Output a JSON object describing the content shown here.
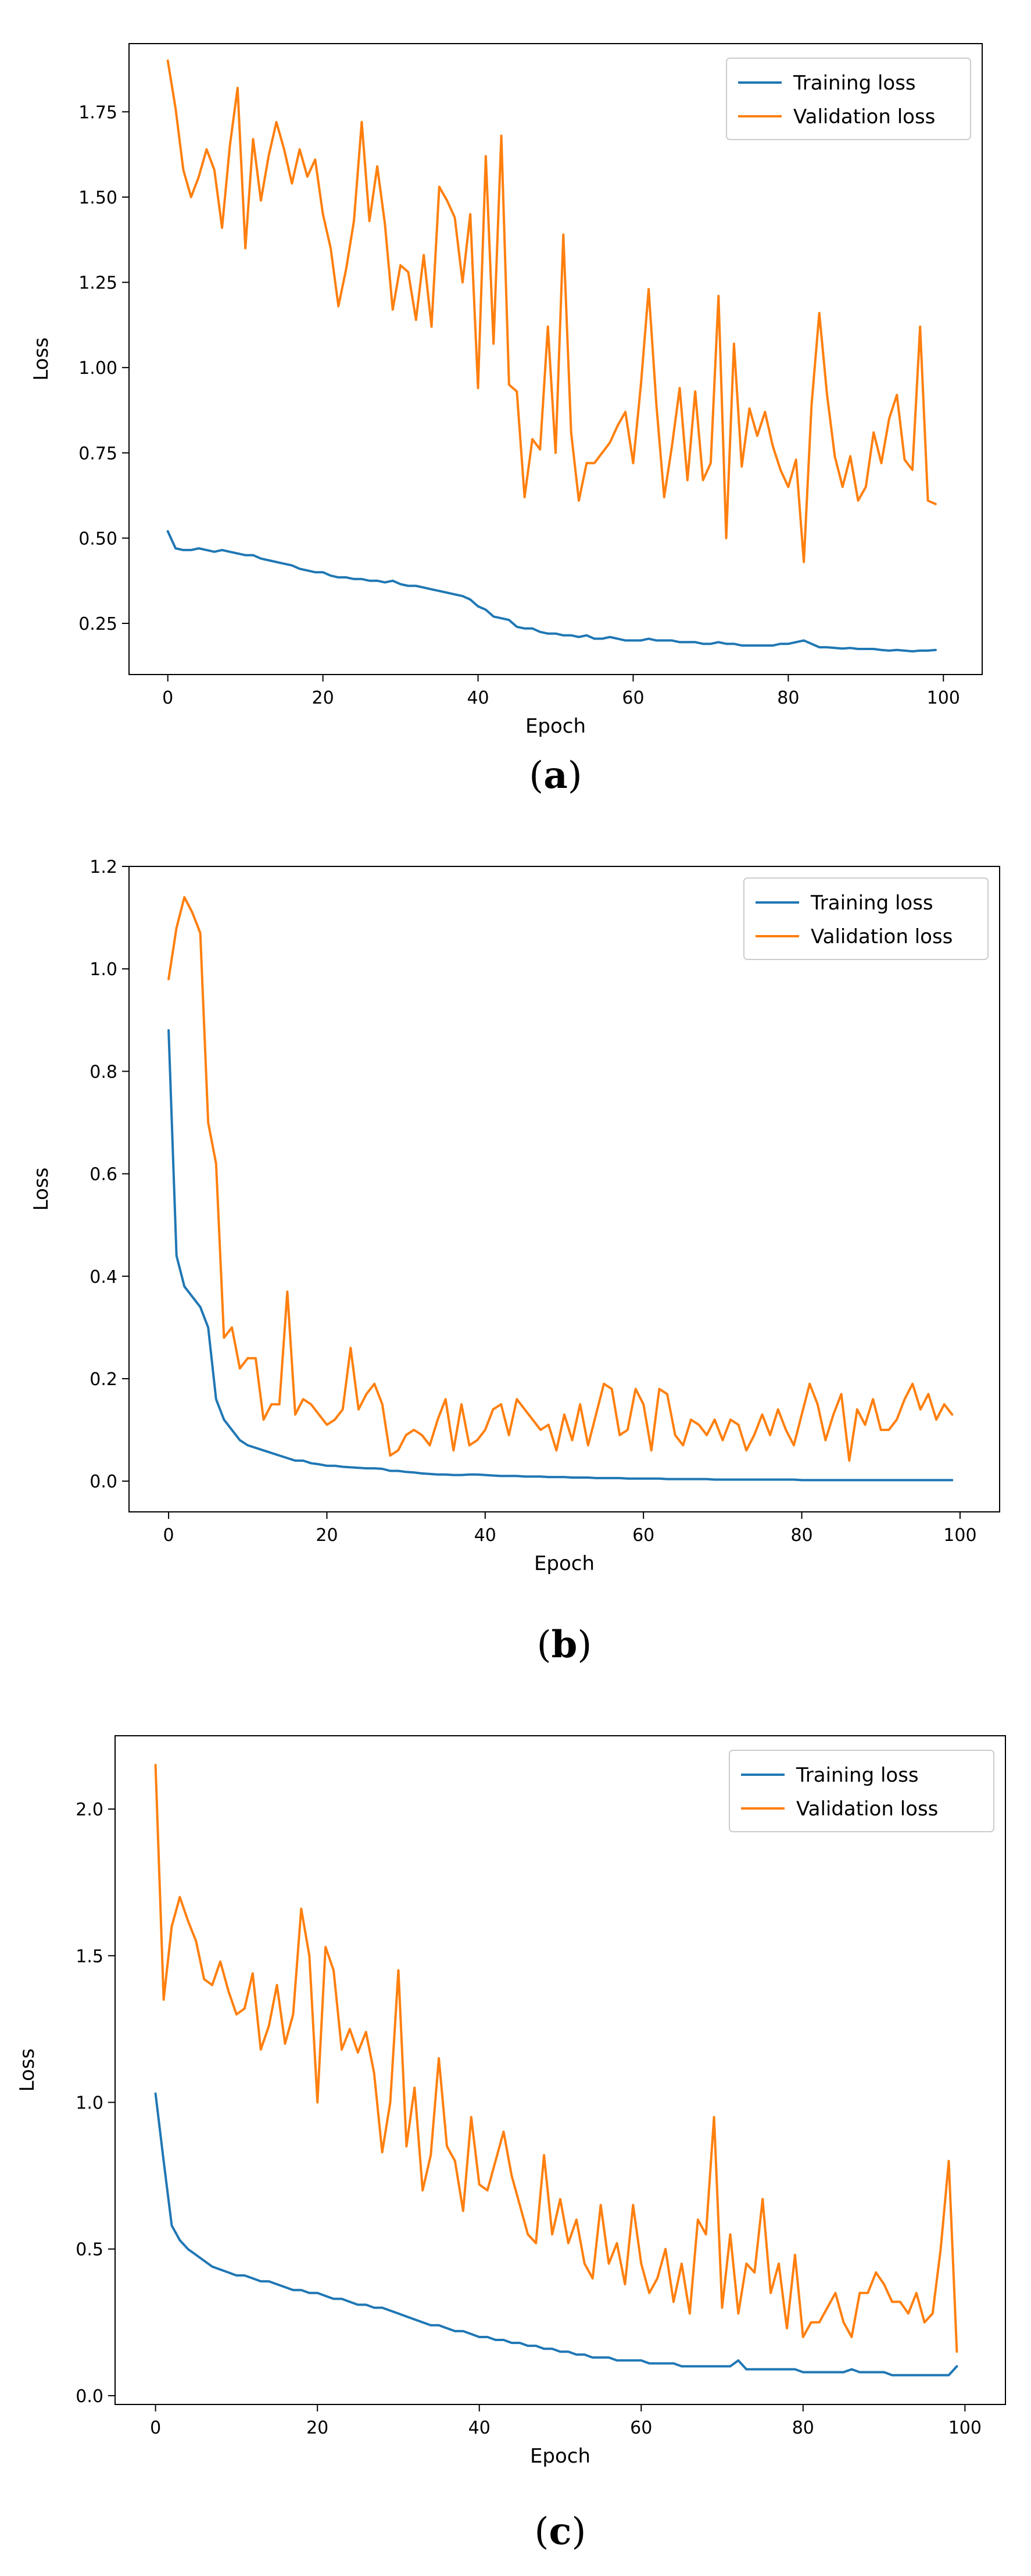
{
  "colors": {
    "training": "#1f77b4",
    "validation": "#ff7f0e"
  },
  "chart_data": [
    {
      "type": "line",
      "caption_letter": "a",
      "xlabel": "Epoch",
      "ylabel": "Loss",
      "xlim": [
        -5,
        105
      ],
      "ylim": [
        0.1,
        1.95
      ],
      "xticks": [
        0,
        20,
        40,
        60,
        80,
        100
      ],
      "yticks": [
        0.25,
        0.5,
        0.75,
        1.0,
        1.25,
        1.5,
        1.75
      ],
      "ytick_labels": [
        "0.25",
        "0.50",
        "0.75",
        "1.00",
        "1.25",
        "1.50",
        "1.75"
      ],
      "legend_position": "top-right",
      "x": [
        0,
        1,
        2,
        3,
        4,
        5,
        6,
        7,
        8,
        9,
        10,
        11,
        12,
        13,
        14,
        15,
        16,
        17,
        18,
        19,
        20,
        21,
        22,
        23,
        24,
        25,
        26,
        27,
        28,
        29,
        30,
        31,
        32,
        33,
        34,
        35,
        36,
        37,
        38,
        39,
        40,
        41,
        42,
        43,
        44,
        45,
        46,
        47,
        48,
        49,
        50,
        51,
        52,
        53,
        54,
        55,
        56,
        57,
        58,
        59,
        60,
        61,
        62,
        63,
        64,
        65,
        66,
        67,
        68,
        69,
        70,
        71,
        72,
        73,
        74,
        75,
        76,
        77,
        78,
        79,
        80,
        81,
        82,
        83,
        84,
        85,
        86,
        87,
        88,
        89,
        90,
        91,
        92,
        93,
        94,
        95,
        96,
        97,
        98,
        99
      ],
      "series": [
        {
          "name": "Training loss",
          "color_key": "training",
          "values": [
            0.52,
            0.47,
            0.465,
            0.465,
            0.47,
            0.465,
            0.46,
            0.465,
            0.46,
            0.455,
            0.45,
            0.45,
            0.44,
            0.435,
            0.43,
            0.425,
            0.42,
            0.41,
            0.405,
            0.4,
            0.4,
            0.39,
            0.385,
            0.385,
            0.38,
            0.38,
            0.375,
            0.375,
            0.37,
            0.375,
            0.365,
            0.36,
            0.36,
            0.355,
            0.35,
            0.345,
            0.34,
            0.335,
            0.33,
            0.32,
            0.3,
            0.29,
            0.27,
            0.265,
            0.26,
            0.24,
            0.235,
            0.235,
            0.225,
            0.22,
            0.22,
            0.215,
            0.215,
            0.21,
            0.215,
            0.205,
            0.205,
            0.21,
            0.205,
            0.2,
            0.2,
            0.2,
            0.205,
            0.2,
            0.2,
            0.2,
            0.195,
            0.195,
            0.195,
            0.19,
            0.19,
            0.195,
            0.19,
            0.19,
            0.185,
            0.185,
            0.185,
            0.185,
            0.185,
            0.19,
            0.19,
            0.195,
            0.2,
            0.19,
            0.18,
            0.18,
            0.178,
            0.176,
            0.178,
            0.175,
            0.175,
            0.175,
            0.172,
            0.17,
            0.172,
            0.17,
            0.168,
            0.17,
            0.17,
            0.172
          ]
        },
        {
          "name": "Validation loss",
          "color_key": "validation",
          "values": [
            1.9,
            1.76,
            1.58,
            1.5,
            1.56,
            1.64,
            1.58,
            1.41,
            1.65,
            1.82,
            1.35,
            1.67,
            1.49,
            1.62,
            1.72,
            1.64,
            1.54,
            1.64,
            1.56,
            1.61,
            1.45,
            1.35,
            1.18,
            1.29,
            1.43,
            1.72,
            1.43,
            1.59,
            1.42,
            1.17,
            1.3,
            1.28,
            1.14,
            1.33,
            1.12,
            1.53,
            1.49,
            1.44,
            1.25,
            1.45,
            0.94,
            1.62,
            1.07,
            1.68,
            0.95,
            0.93,
            0.62,
            0.79,
            0.76,
            1.12,
            0.75,
            1.39,
            0.81,
            0.61,
            0.72,
            0.72,
            0.75,
            0.78,
            0.83,
            0.87,
            0.72,
            0.95,
            1.23,
            0.89,
            0.62,
            0.77,
            0.94,
            0.67,
            0.93,
            0.67,
            0.72,
            1.21,
            0.5,
            1.07,
            0.71,
            0.88,
            0.8,
            0.87,
            0.77,
            0.7,
            0.65,
            0.73,
            0.43,
            0.89,
            1.16,
            0.92,
            0.74,
            0.65,
            0.74,
            0.61,
            0.65,
            0.81,
            0.72,
            0.85,
            0.92,
            0.73,
            0.7,
            1.12,
            0.61,
            0.6
          ]
        }
      ]
    },
    {
      "type": "line",
      "caption_letter": "b",
      "xlabel": "Epoch",
      "ylabel": "Loss",
      "xlim": [
        -5,
        105
      ],
      "ylim": [
        -0.06,
        1.2
      ],
      "xticks": [
        0,
        20,
        40,
        60,
        80,
        100
      ],
      "yticks": [
        0.0,
        0.2,
        0.4,
        0.6,
        0.8,
        1.0,
        1.2
      ],
      "ytick_labels": [
        "0.0",
        "0.2",
        "0.4",
        "0.6",
        "0.8",
        "1.0",
        "1.2"
      ],
      "legend_position": "top-right",
      "x": [
        0,
        1,
        2,
        3,
        4,
        5,
        6,
        7,
        8,
        9,
        10,
        11,
        12,
        13,
        14,
        15,
        16,
        17,
        18,
        19,
        20,
        21,
        22,
        23,
        24,
        25,
        26,
        27,
        28,
        29,
        30,
        31,
        32,
        33,
        34,
        35,
        36,
        37,
        38,
        39,
        40,
        41,
        42,
        43,
        44,
        45,
        46,
        47,
        48,
        49,
        50,
        51,
        52,
        53,
        54,
        55,
        56,
        57,
        58,
        59,
        60,
        61,
        62,
        63,
        64,
        65,
        66,
        67,
        68,
        69,
        70,
        71,
        72,
        73,
        74,
        75,
        76,
        77,
        78,
        79,
        80,
        81,
        82,
        83,
        84,
        85,
        86,
        87,
        88,
        89,
        90,
        91,
        92,
        93,
        94,
        95,
        96,
        97,
        98,
        99
      ],
      "series": [
        {
          "name": "Training loss",
          "color_key": "training",
          "values": [
            0.88,
            0.44,
            0.38,
            0.36,
            0.34,
            0.3,
            0.16,
            0.12,
            0.1,
            0.08,
            0.07,
            0.065,
            0.06,
            0.055,
            0.05,
            0.045,
            0.04,
            0.04,
            0.035,
            0.033,
            0.03,
            0.03,
            0.028,
            0.027,
            0.026,
            0.025,
            0.025,
            0.024,
            0.02,
            0.02,
            0.018,
            0.017,
            0.015,
            0.014,
            0.013,
            0.013,
            0.012,
            0.012,
            0.013,
            0.013,
            0.012,
            0.011,
            0.01,
            0.01,
            0.01,
            0.009,
            0.009,
            0.009,
            0.008,
            0.008,
            0.008,
            0.007,
            0.007,
            0.007,
            0.006,
            0.006,
            0.006,
            0.006,
            0.005,
            0.005,
            0.005,
            0.005,
            0.005,
            0.004,
            0.004,
            0.004,
            0.004,
            0.004,
            0.004,
            0.003,
            0.003,
            0.003,
            0.003,
            0.003,
            0.003,
            0.003,
            0.003,
            0.003,
            0.003,
            0.003,
            0.002,
            0.002,
            0.002,
            0.002,
            0.002,
            0.002,
            0.002,
            0.002,
            0.002,
            0.002,
            0.002,
            0.002,
            0.002,
            0.002,
            0.002,
            0.002,
            0.002,
            0.002,
            0.002,
            0.002
          ]
        },
        {
          "name": "Validation loss",
          "color_key": "validation",
          "values": [
            0.98,
            1.08,
            1.14,
            1.11,
            1.07,
            0.7,
            0.62,
            0.28,
            0.3,
            0.22,
            0.24,
            0.24,
            0.12,
            0.15,
            0.15,
            0.37,
            0.13,
            0.16,
            0.15,
            0.13,
            0.11,
            0.12,
            0.14,
            0.26,
            0.14,
            0.17,
            0.19,
            0.15,
            0.05,
            0.06,
            0.09,
            0.1,
            0.09,
            0.07,
            0.12,
            0.16,
            0.06,
            0.15,
            0.07,
            0.08,
            0.1,
            0.14,
            0.15,
            0.09,
            0.16,
            0.14,
            0.12,
            0.1,
            0.11,
            0.06,
            0.13,
            0.08,
            0.15,
            0.07,
            0.13,
            0.19,
            0.18,
            0.09,
            0.1,
            0.18,
            0.15,
            0.06,
            0.18,
            0.17,
            0.09,
            0.07,
            0.12,
            0.11,
            0.09,
            0.12,
            0.08,
            0.12,
            0.11,
            0.06,
            0.09,
            0.13,
            0.09,
            0.14,
            0.1,
            0.07,
            0.13,
            0.19,
            0.15,
            0.08,
            0.13,
            0.17,
            0.04,
            0.14,
            0.11,
            0.16,
            0.1,
            0.1,
            0.12,
            0.16,
            0.19,
            0.14,
            0.17,
            0.12,
            0.15,
            0.13
          ]
        }
      ]
    },
    {
      "type": "line",
      "caption_letter": "c",
      "xlabel": "Epoch",
      "ylabel": "Loss",
      "xlim": [
        -5,
        105
      ],
      "ylim": [
        -0.03,
        2.25
      ],
      "xticks": [
        0,
        20,
        40,
        60,
        80,
        100
      ],
      "yticks": [
        0.0,
        0.5,
        1.0,
        1.5,
        2.0
      ],
      "ytick_labels": [
        "0.0",
        "0.5",
        "1.0",
        "1.5",
        "2.0"
      ],
      "legend_position": "top-right",
      "x": [
        0,
        1,
        2,
        3,
        4,
        5,
        6,
        7,
        8,
        9,
        10,
        11,
        12,
        13,
        14,
        15,
        16,
        17,
        18,
        19,
        20,
        21,
        22,
        23,
        24,
        25,
        26,
        27,
        28,
        29,
        30,
        31,
        32,
        33,
        34,
        35,
        36,
        37,
        38,
        39,
        40,
        41,
        42,
        43,
        44,
        45,
        46,
        47,
        48,
        49,
        50,
        51,
        52,
        53,
        54,
        55,
        56,
        57,
        58,
        59,
        60,
        61,
        62,
        63,
        64,
        65,
        66,
        67,
        68,
        69,
        70,
        71,
        72,
        73,
        74,
        75,
        76,
        77,
        78,
        79,
        80,
        81,
        82,
        83,
        84,
        85,
        86,
        87,
        88,
        89,
        90,
        91,
        92,
        93,
        94,
        95,
        96,
        97,
        98,
        99
      ],
      "series": [
        {
          "name": "Training loss",
          "color_key": "training",
          "values": [
            1.03,
            0.8,
            0.58,
            0.53,
            0.5,
            0.48,
            0.46,
            0.44,
            0.43,
            0.42,
            0.41,
            0.41,
            0.4,
            0.39,
            0.39,
            0.38,
            0.37,
            0.36,
            0.36,
            0.35,
            0.35,
            0.34,
            0.33,
            0.33,
            0.32,
            0.31,
            0.31,
            0.3,
            0.3,
            0.29,
            0.28,
            0.27,
            0.26,
            0.25,
            0.24,
            0.24,
            0.23,
            0.22,
            0.22,
            0.21,
            0.2,
            0.2,
            0.19,
            0.19,
            0.18,
            0.18,
            0.17,
            0.17,
            0.16,
            0.16,
            0.15,
            0.15,
            0.14,
            0.14,
            0.13,
            0.13,
            0.13,
            0.12,
            0.12,
            0.12,
            0.12,
            0.11,
            0.11,
            0.11,
            0.11,
            0.1,
            0.1,
            0.1,
            0.1,
            0.1,
            0.1,
            0.1,
            0.12,
            0.09,
            0.09,
            0.09,
            0.09,
            0.09,
            0.09,
            0.09,
            0.08,
            0.08,
            0.08,
            0.08,
            0.08,
            0.08,
            0.09,
            0.08,
            0.08,
            0.08,
            0.08,
            0.07,
            0.07,
            0.07,
            0.07,
            0.07,
            0.07,
            0.07,
            0.07,
            0.1
          ]
        },
        {
          "name": "Validation loss",
          "color_key": "validation",
          "values": [
            2.15,
            1.35,
            1.6,
            1.7,
            1.62,
            1.55,
            1.42,
            1.4,
            1.48,
            1.38,
            1.3,
            1.32,
            1.44,
            1.18,
            1.26,
            1.4,
            1.2,
            1.3,
            1.66,
            1.5,
            1.0,
            1.53,
            1.45,
            1.18,
            1.25,
            1.17,
            1.24,
            1.1,
            0.83,
            1.0,
            1.45,
            0.85,
            1.05,
            0.7,
            0.82,
            1.15,
            0.85,
            0.8,
            0.63,
            0.95,
            0.72,
            0.7,
            0.8,
            0.9,
            0.75,
            0.65,
            0.55,
            0.52,
            0.82,
            0.55,
            0.67,
            0.52,
            0.6,
            0.45,
            0.4,
            0.65,
            0.45,
            0.52,
            0.38,
            0.65,
            0.45,
            0.35,
            0.4,
            0.5,
            0.32,
            0.45,
            0.28,
            0.6,
            0.55,
            0.95,
            0.3,
            0.55,
            0.28,
            0.45,
            0.42,
            0.67,
            0.35,
            0.45,
            0.23,
            0.48,
            0.2,
            0.25,
            0.25,
            0.3,
            0.35,
            0.25,
            0.2,
            0.35,
            0.35,
            0.42,
            0.38,
            0.32,
            0.32,
            0.28,
            0.35,
            0.25,
            0.28,
            0.5,
            0.8,
            0.15
          ]
        }
      ]
    }
  ],
  "legend": {
    "training_label": "Training loss",
    "validation_label": "Validation loss"
  },
  "captions": [
    {
      "open": "(",
      "letter": "a",
      "close": ")"
    },
    {
      "open": "(",
      "letter": "b",
      "close": ")"
    },
    {
      "open": "(",
      "letter": "c",
      "close": ")"
    }
  ]
}
